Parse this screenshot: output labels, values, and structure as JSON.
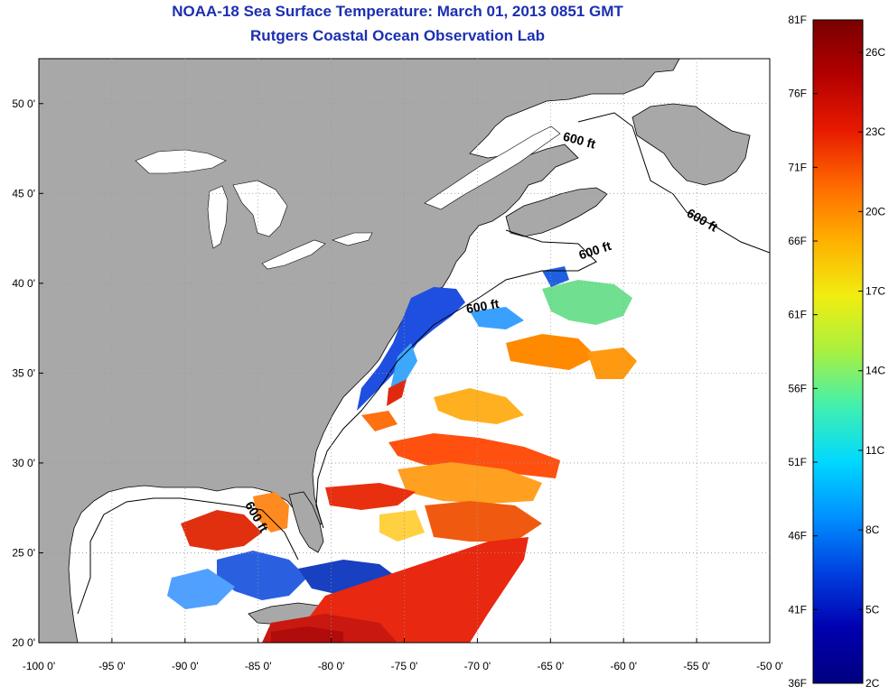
{
  "title": "NOAA-18 Sea Surface Temperature:  March 01, 2013 0851 GMT",
  "subtitle": "Rutgers Coastal Ocean Observation Lab",
  "colors": {
    "land": "#a8a8a8",
    "water_clear": "#ffffff",
    "grid": "#9a9a9a",
    "title_text": "#1c2fb0",
    "coast": "#000000"
  },
  "map": {
    "lon_ticks": [
      "-100 0'",
      "-95 0'",
      "-90 0'",
      "-85 0'",
      "-80 0'",
      "-75 0'",
      "-70 0'",
      "-65 0'",
      "-60 0'",
      "-55 0'",
      "-50 0'"
    ],
    "lat_ticks": [
      "50 0'",
      "45 0'",
      "40 0'",
      "35 0'",
      "30 0'",
      "25 0'",
      "20 0'"
    ],
    "isobath_labels": [
      "600 ft",
      "600 ft",
      "600 ft",
      "600 ft",
      "600 ft"
    ]
  },
  "colorbar": {
    "fahrenheit_labels": [
      "81F",
      "76F",
      "71F",
      "66F",
      "61F",
      "56F",
      "51F",
      "46F",
      "41F",
      "36F"
    ],
    "celsius_labels": [
      "26C",
      "23C",
      "20C",
      "17C",
      "14C",
      "11C",
      "8C",
      "5C",
      "2C"
    ],
    "gradient_stops": [
      "#7a0000",
      "#b30000",
      "#e81a00",
      "#ff6a00",
      "#ffb000",
      "#f0ee10",
      "#a8f040",
      "#40f0b0",
      "#00d8ff",
      "#0090ff",
      "#0040e0",
      "#0000b0",
      "#000080"
    ]
  }
}
